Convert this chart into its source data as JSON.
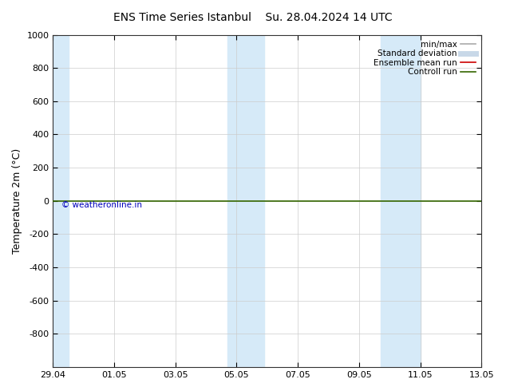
{
  "title_left": "ENS Time Series Istanbul",
  "title_right": "Su. 28.04.2024 14 UTC",
  "ylabel": "Temperature 2m (°C)",
  "xtick_labels": [
    "29.04",
    "01.05",
    "03.05",
    "05.05",
    "07.05",
    "09.05",
    "11.05",
    "13.05"
  ],
  "xlim": [
    0,
    14
  ],
  "ylim_top": -1000,
  "ylim_bottom": 1000,
  "yticks": [
    -800,
    -600,
    -400,
    -200,
    0,
    200,
    400,
    600,
    800,
    1000
  ],
  "background_color": "#ffffff",
  "plot_bg_color": "#ffffff",
  "shaded_color": "#d6eaf8",
  "shaded_regions": [
    [
      -0.1,
      0.5
    ],
    [
      5.7,
      6.3
    ],
    [
      6.3,
      6.9
    ],
    [
      10.7,
      11.3
    ],
    [
      11.3,
      12.0
    ]
  ],
  "green_line_y": 0,
  "copyright_text": "© weatheronline.in",
  "copyright_color": "#0000bb",
  "legend_items": [
    {
      "label": "min/max",
      "color": "#aaaaaa",
      "lw": 1.2,
      "linestyle": "-"
    },
    {
      "label": "Standard deviation",
      "color": "#c8d8e8",
      "lw": 5
    },
    {
      "label": "Ensemble mean run",
      "color": "#cc0000",
      "lw": 1.2
    },
    {
      "label": "Controll run",
      "color": "#336600",
      "lw": 1.2
    }
  ],
  "title_fontsize": 10,
  "axis_label_fontsize": 9,
  "tick_fontsize": 8,
  "legend_fontsize": 7.5
}
